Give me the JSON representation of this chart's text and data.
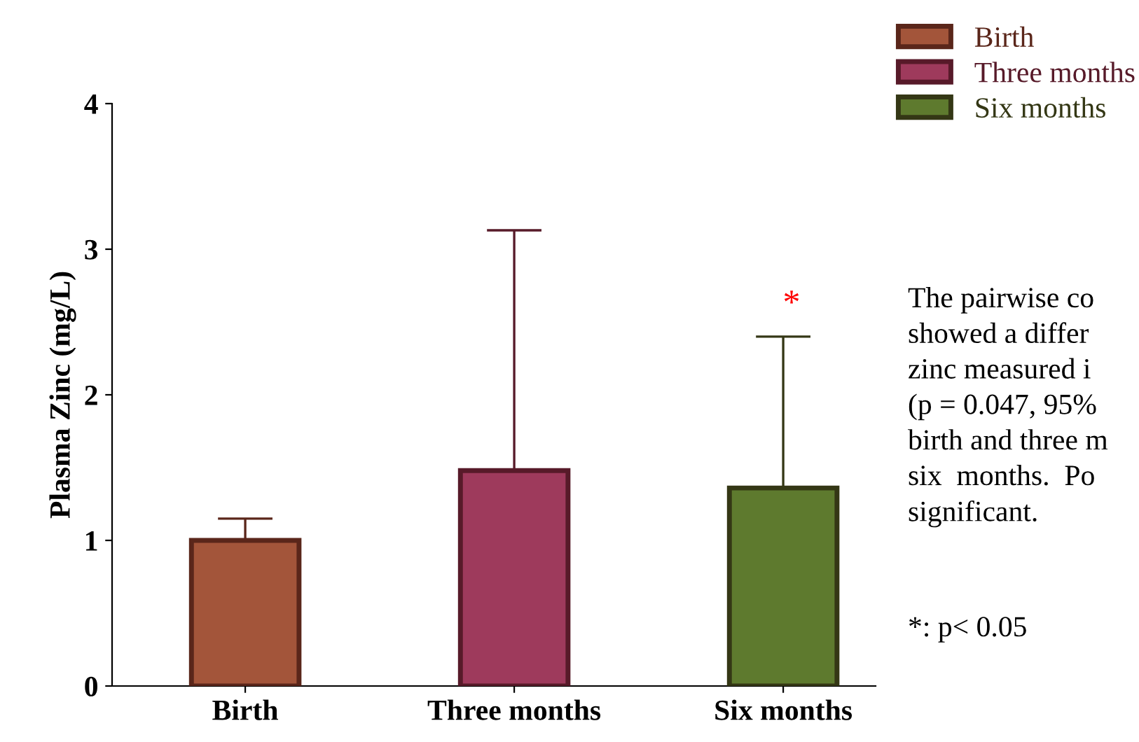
{
  "chart_data": {
    "type": "bar",
    "ylabel": "Plasma Zinc (mg/L)",
    "categories": [
      "Birth",
      "Three months",
      "Six months"
    ],
    "series": [
      {
        "name": "Birth",
        "color": "#a3553a",
        "values": [
          1.0,
          null,
          null
        ],
        "errors": [
          [
            1.0,
            1.15
          ],
          null,
          null
        ]
      },
      {
        "name": "Three months",
        "color": "#9e3a5c",
        "values": [
          null,
          1.48,
          null
        ],
        "errors": [
          null,
          [
            1.48,
            3.13
          ],
          null
        ]
      },
      {
        "name": "Six months",
        "color": "#5e7a2e",
        "values": [
          null,
          null,
          1.36
        ],
        "errors": [
          null,
          null,
          [
            1.36,
            2.4
          ]
        ]
      }
    ],
    "ylim": [
      0,
      4
    ],
    "yticks": [
      0,
      1,
      2,
      3,
      4
    ],
    "grid": false,
    "legend": "top right",
    "annotations": [
      "*",
      "The pairwise co\nshowed a differ\nzinc measured i\n(p = 0.047, 95%\nbirth and three m\nsix  months.  Po\nsignificant.",
      "*: p< 0.05"
    ]
  }
}
